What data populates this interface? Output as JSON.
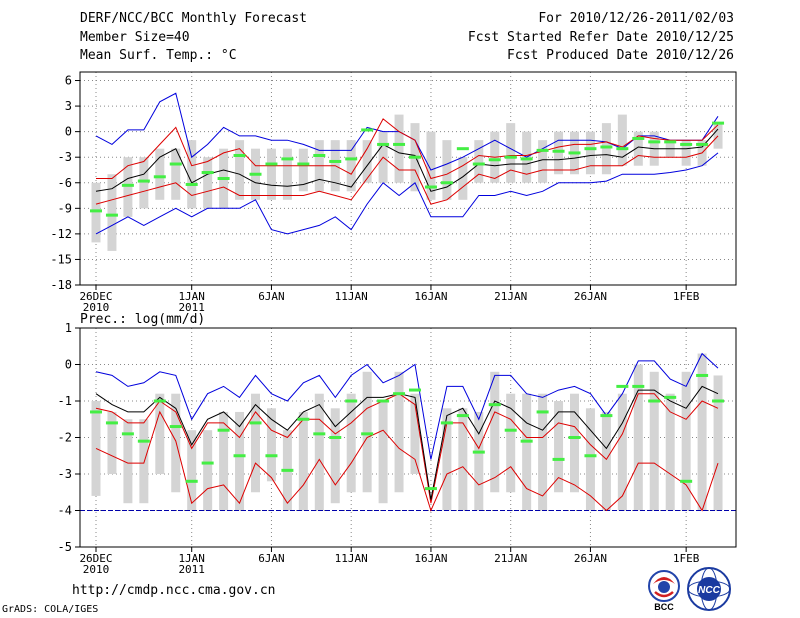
{
  "header": {
    "title": "DERF/NCC/BCC Monthly Forecast",
    "member_size": "Member Size=40",
    "variable": "Mean Surf. Temp.: °C",
    "period": "For 2010/12/26-2011/02/03",
    "fcst_started": "Fcst Started Refer Date 2010/12/25",
    "fcst_produced": "Fcst Produced Date 2010/12/26"
  },
  "footer": {
    "url": "http://cmdp.ncc.cma.gov.cn",
    "grads_credit": "GrADS: COLA/IGES",
    "logo_bcc": "BCC",
    "logo_ncc": "NCC"
  },
  "colors": {
    "envelope": "#0000dd",
    "spread": "#dd0000",
    "mean": "#000000",
    "observed": "#44ee44",
    "box": "#d4d4d4",
    "zero_line": "#0000aa"
  },
  "x_ticks": [
    {
      "day": 0,
      "label": "26DEC",
      "sub": "2010"
    },
    {
      "day": 6,
      "label": "1JAN",
      "sub": "2011"
    },
    {
      "day": 11,
      "label": "6JAN",
      "sub": ""
    },
    {
      "day": 16,
      "label": "11JAN",
      "sub": ""
    },
    {
      "day": 21,
      "label": "16JAN",
      "sub": ""
    },
    {
      "day": 26,
      "label": "21JAN",
      "sub": ""
    },
    {
      "day": 31,
      "label": "26JAN",
      "sub": ""
    },
    {
      "day": 37,
      "label": "1FEB",
      "sub": ""
    }
  ],
  "chart_data": [
    {
      "type": "line",
      "title": "Mean Surf. Temp.: °C",
      "xlabel": "",
      "ylabel": "",
      "ylim": [
        -18,
        7
      ],
      "yticks": [
        6,
        3,
        0,
        -3,
        -6,
        -9,
        -12,
        -15,
        -18
      ],
      "grid": true,
      "n_days": 40,
      "box_low": [
        -13,
        -14,
        -10,
        -9,
        -8,
        -8,
        -9,
        -9,
        -9,
        -8,
        -8,
        -8,
        -8,
        -7,
        -7,
        -7,
        -7,
        -6,
        -6,
        -6,
        -7,
        -8,
        -8,
        -8,
        -6,
        -6,
        -6,
        -6,
        -6,
        -5,
        -5,
        -5,
        -5,
        -4,
        -4,
        -4,
        -3,
        -4,
        -4,
        -2
      ],
      "box_high": [
        -6,
        -5,
        -3,
        -3,
        -2,
        -2,
        -1,
        -3,
        -2,
        -1,
        -2,
        -2,
        -2,
        -2,
        -1,
        -1,
        -1,
        -1,
        0,
        2,
        1,
        0,
        -1,
        -3,
        -1,
        0,
        1,
        0,
        -1,
        0,
        0,
        0,
        1,
        2,
        0,
        0,
        -1,
        -1,
        -1,
        1
      ],
      "upper": [
        -0.5,
        -1.5,
        0.2,
        0.2,
        3.5,
        4.5,
        -3,
        -1.5,
        0.5,
        -0.5,
        -0.5,
        -1,
        -1,
        -1.5,
        -2.2,
        -2.2,
        -2.2,
        0.5,
        0,
        0,
        -1,
        -4.5,
        -3.8,
        -3,
        -2,
        -1,
        -2,
        -3,
        -2,
        -1,
        -1,
        -1,
        -1.2,
        -2,
        -0.5,
        -0.5,
        -1,
        -1,
        -1,
        1.8
      ],
      "lower": [
        -12,
        -11,
        -10,
        -11,
        -10,
        -9,
        -10,
        -9,
        -9,
        -9,
        -8,
        -11.5,
        -12,
        -11.5,
        -11,
        -10,
        -11.5,
        -8.5,
        -6,
        -7.5,
        -6,
        -10,
        -10,
        -10,
        -7.5,
        -7.5,
        -7,
        -7.5,
        -7,
        -6,
        -6,
        -6,
        -5.8,
        -5,
        -5,
        -5,
        -4.8,
        -4.5,
        -4,
        -2.5
      ],
      "spread_high": [
        -5.5,
        -5.5,
        -4,
        -3.5,
        -1.5,
        0.5,
        -4,
        -3.5,
        -2.5,
        -2,
        -4,
        -4,
        -4,
        -4,
        -4,
        -4,
        -5,
        -2,
        1.5,
        0,
        -1,
        -5.5,
        -5,
        -4,
        -2.8,
        -3,
        -2.8,
        -2.8,
        -2.3,
        -1.8,
        -1.5,
        -1.5,
        -1.2,
        -1.8,
        -0.5,
        -0.8,
        -1,
        -1,
        -1,
        0.8
      ],
      "spread_low": [
        -8.5,
        -8,
        -7.5,
        -7,
        -6.5,
        -6,
        -7.5,
        -7,
        -6.5,
        -7.5,
        -7.5,
        -7.5,
        -7.5,
        -7.5,
        -7,
        -7.5,
        -8,
        -5.5,
        -3,
        -4.5,
        -4.5,
        -8.5,
        -8,
        -6.5,
        -5,
        -5.5,
        -4.5,
        -5,
        -4.5,
        -4.5,
        -4.5,
        -4,
        -4,
        -4,
        -2.8,
        -3,
        -3,
        -3,
        -2.5,
        -0.5
      ],
      "mean": [
        -7,
        -6.7,
        -5.5,
        -5,
        -3,
        -2,
        -6,
        -5,
        -4.5,
        -5,
        -6,
        -6.3,
        -6.4,
        -6.2,
        -5.6,
        -6,
        -6.5,
        -4,
        -1.5,
        -2.5,
        -2.8,
        -7,
        -6.5,
        -5.3,
        -3.8,
        -4,
        -3.8,
        -3.8,
        -3.3,
        -3.3,
        -3.1,
        -2.8,
        -2.7,
        -3,
        -1.8,
        -2,
        -2,
        -2,
        -1.8,
        0.3
      ],
      "observed": [
        -9.3,
        -9.8,
        -6.3,
        -5.8,
        -5.3,
        -3.8,
        -6.2,
        -4.8,
        -5.5,
        -2.8,
        -5,
        -3.8,
        -3.2,
        -3.8,
        -2.8,
        -3.5,
        -3.2,
        0.2,
        -1.5,
        -1.5,
        -3,
        -6.5,
        -6,
        -2,
        -3.8,
        -3.3,
        -3,
        -3.2,
        -2.2,
        -2.3,
        -2.5,
        -2,
        -1.8,
        -2,
        -0.8,
        -1.2,
        -1.2,
        -1.5,
        -1.5,
        1
      ]
    },
    {
      "type": "line",
      "title": "Prec.: log(mm/d)",
      "xlabel": "",
      "ylabel": "",
      "ylim": [
        -5,
        1
      ],
      "yticks": [
        1,
        0,
        -1,
        -2,
        -3,
        -4,
        -5
      ],
      "grid": true,
      "n_days": 40,
      "box_low": [
        -3.6,
        -3,
        -3.8,
        -3.8,
        -3,
        -3.5,
        -4,
        -4,
        -4,
        -4,
        -3.5,
        -3.2,
        -4,
        -4,
        -4,
        -3.8,
        -3.5,
        -3.5,
        -3.8,
        -3.5,
        -3,
        -3,
        -4,
        -4,
        -4,
        -3.5,
        -3.5,
        -4,
        -4,
        -3.5,
        -3.5,
        -4,
        -4,
        -4,
        -4,
        -4,
        -4,
        -4,
        -4,
        -4
      ],
      "box_high": [
        -1,
        -1.3,
        -1.5,
        -1.5,
        -0.8,
        -0.8,
        -1.8,
        -1.8,
        -1.3,
        -1.3,
        -0.8,
        -1.2,
        -1.8,
        -1.3,
        -0.8,
        -1.2,
        -0.8,
        -0.2,
        -1,
        -0.2,
        -0.8,
        -3,
        -1.2,
        -1.2,
        -1.3,
        -0.2,
        -0.8,
        -0.8,
        -0.8,
        -1,
        -0.8,
        -1.2,
        -1.3,
        -0.8,
        0,
        -0.2,
        -0.8,
        -0.2,
        0.3,
        -0.3
      ],
      "upper": [
        -0.2,
        -0.3,
        -0.6,
        -0.5,
        -0.2,
        -0.3,
        -1.5,
        -0.8,
        -0.6,
        -0.9,
        -0.3,
        -0.8,
        -1,
        -0.5,
        -0.3,
        -0.9,
        -0.3,
        0,
        -0.5,
        -0.3,
        0,
        -2.6,
        -0.6,
        -0.6,
        -1.5,
        -0.3,
        -0.3,
        -0.8,
        -0.9,
        -0.7,
        -0.6,
        -0.8,
        -1.4,
        -0.8,
        0.1,
        0.1,
        -0.4,
        -0.6,
        0.3,
        -0.1
      ],
      "spread_high": [
        -1.2,
        -1.3,
        -1.6,
        -1.6,
        -1,
        -1.3,
        -2.3,
        -1.6,
        -1.6,
        -2,
        -1.3,
        -1.8,
        -2,
        -1.5,
        -1.5,
        -1.9,
        -1.6,
        -1.2,
        -1,
        -0.8,
        -1.1,
        -3.8,
        -1.6,
        -1.6,
        -2.3,
        -1.3,
        -1.5,
        -2,
        -2,
        -1.6,
        -1.7,
        -2.2,
        -2.6,
        -1.9,
        -0.8,
        -0.8,
        -1.3,
        -1.5,
        -1,
        -1.2
      ],
      "mean": [
        -0.8,
        -1.1,
        -1.3,
        -1.3,
        -0.9,
        -1.2,
        -2.2,
        -1.5,
        -1.3,
        -1.7,
        -1.1,
        -1.5,
        -1.8,
        -1.3,
        -1.1,
        -1.7,
        -1.3,
        -0.9,
        -0.9,
        -0.8,
        -0.9,
        -3.7,
        -1.4,
        -1.2,
        -1.9,
        -1,
        -1.2,
        -1.6,
        -1.8,
        -1.3,
        -1.3,
        -1.8,
        -2.3,
        -1.6,
        -0.7,
        -0.7,
        -1,
        -1.2,
        -0.6,
        -0.8
      ],
      "spread_low": [
        -2.3,
        -2.5,
        -2.7,
        -2.7,
        -1.3,
        -2.1,
        -3.8,
        -3.4,
        -3.3,
        -3.8,
        -2.7,
        -3.1,
        -3.8,
        -3.3,
        -2.6,
        -3.3,
        -2.7,
        -2,
        -1.8,
        -2.3,
        -2.6,
        -4,
        -3,
        -2.8,
        -3.3,
        -3.1,
        -2.8,
        -3.4,
        -3.6,
        -3.1,
        -3.3,
        -3.6,
        -4,
        -3.6,
        -2.7,
        -2.7,
        -3,
        -3.3,
        -4,
        -2.7
      ],
      "lower": [
        -2.3,
        -2.5,
        -2.7,
        -2.7,
        -1.3,
        -2.1,
        -3.8,
        -3.4,
        -3.3,
        -3.8,
        -2.7,
        -3.1,
        -3.8,
        -3.3,
        -2.6,
        -3.3,
        -2.7,
        -2,
        -1.8,
        -2.3,
        -2.6,
        -4,
        -3,
        -2.8,
        -3.3,
        -3.1,
        -2.8,
        -3.4,
        -3.6,
        -3.1,
        -3.3,
        -3.6,
        -4,
        -3.6,
        -2.7,
        -2.7,
        -3,
        -3.3,
        -4,
        -2.7
      ],
      "zero_line": -4,
      "observed": [
        -1.3,
        -1.6,
        -1.9,
        -2.1,
        -1,
        -1.7,
        -3.2,
        -2.7,
        -1.8,
        -2.5,
        -1.6,
        -2.5,
        -2.9,
        -1.5,
        -1.9,
        -2,
        -1,
        -1.9,
        -1,
        -0.8,
        -0.7,
        -3.4,
        -1.6,
        -1.4,
        -2.4,
        -1.1,
        -1.8,
        -2.1,
        -1.3,
        -2.6,
        -2,
        -2.5,
        -1.4,
        -0.6,
        -0.6,
        -1,
        -0.9,
        -3.2,
        -0.3,
        -1
      ]
    }
  ]
}
